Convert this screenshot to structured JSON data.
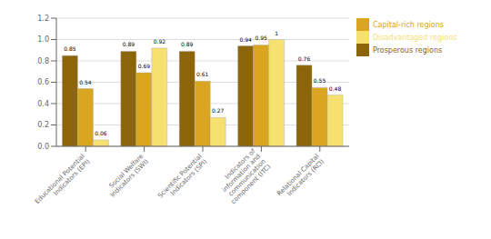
{
  "chart_data": {
    "type": "bar",
    "categories": [
      "Educational Potential\nIndicators (EPI)",
      "Social Welfare\nIndicators (SWI)",
      "Scientific Potential\nIndicators (SPI)",
      "Indicators of\ninformation and\ncommunication\ncomponent (ITC)",
      "Relational Capital\nIndicators (RCI)"
    ],
    "series": [
      {
        "name": "Prosperous regions",
        "color": "#8B6508",
        "values": [
          0.85,
          0.89,
          0.89,
          0.94,
          0.76
        ]
      },
      {
        "name": "Capital-rich regions",
        "color": "#DAA520",
        "values": [
          0.54,
          0.69,
          0.61,
          0.95,
          0.55
        ]
      },
      {
        "name": "Disadvantaged regions",
        "color": "#F5E070",
        "values": [
          0.06,
          0.92,
          0.27,
          1,
          0.48
        ]
      }
    ],
    "ylim": [
      0,
      1.2
    ],
    "yticks": [
      {
        "value": 0,
        "label": "0.0"
      },
      0.2,
      0.4,
      0.6,
      0.8,
      {
        "value": 1,
        "label": "1.0"
      },
      1.2
    ],
    "grid": true,
    "legend": "right",
    "data_labels": true
  }
}
